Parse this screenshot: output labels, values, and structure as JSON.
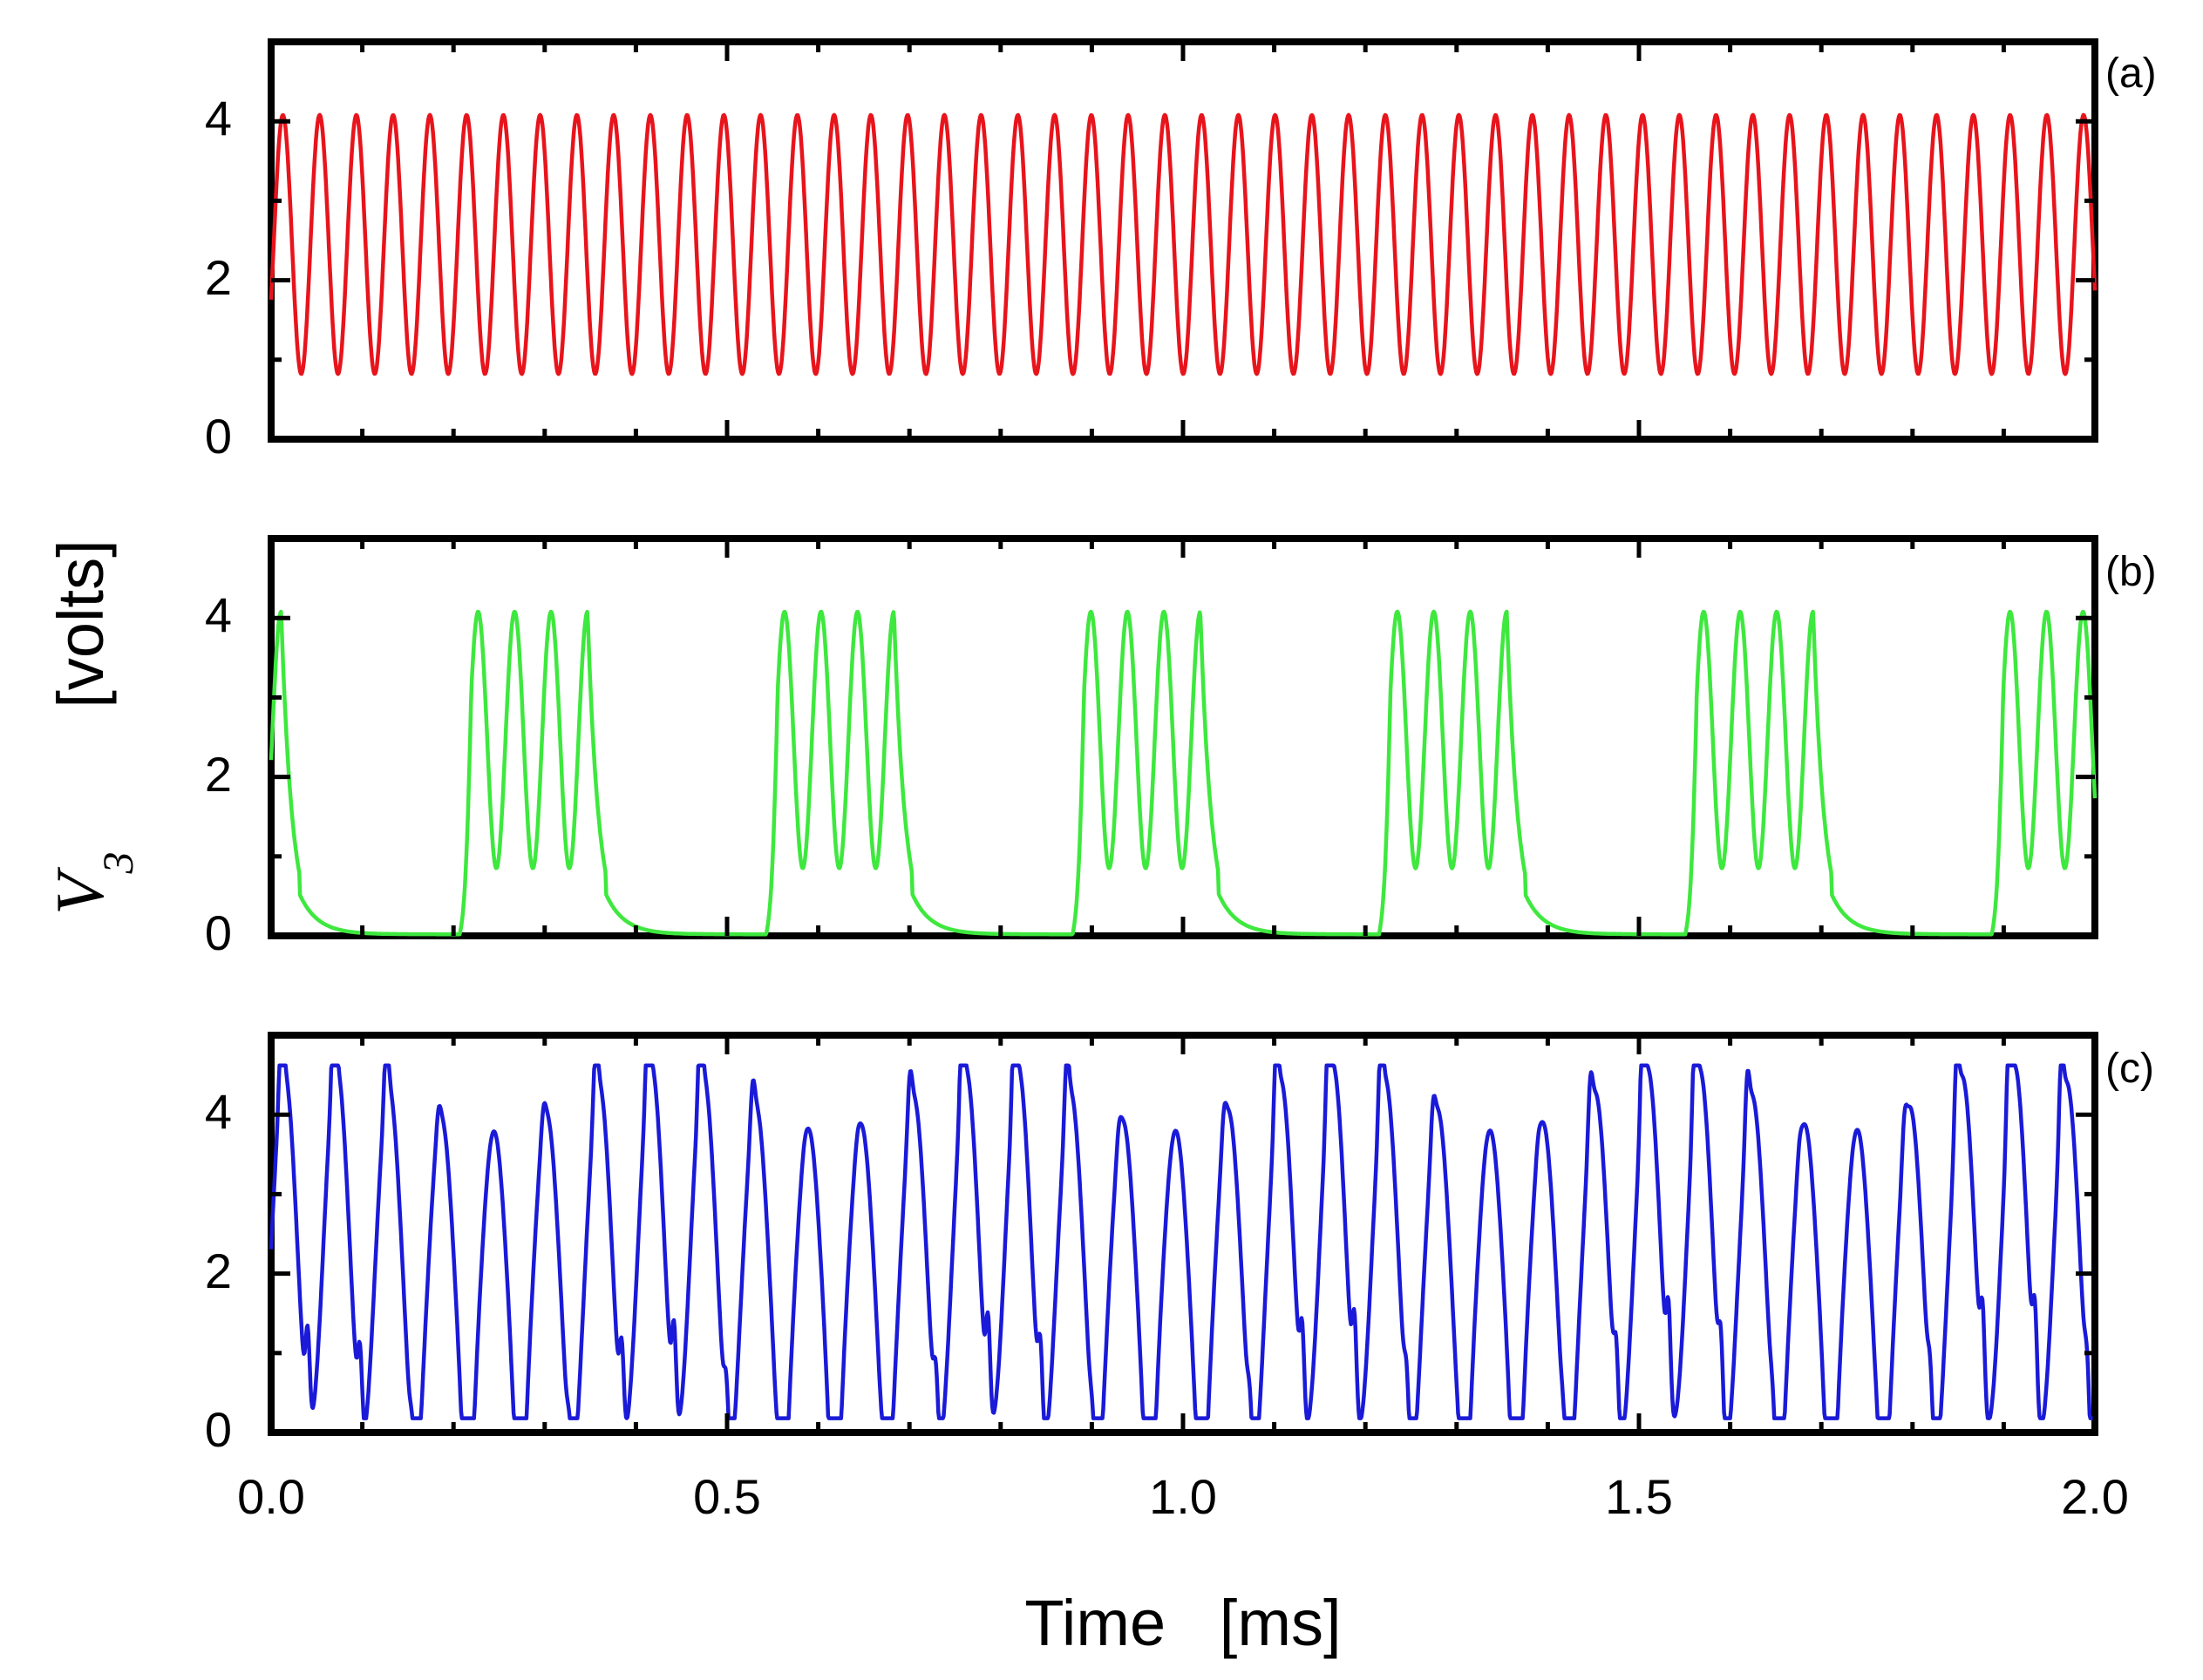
{
  "chart_data": {
    "type": "line",
    "xlabel": "Time   [ms]",
    "ylabel_var": "V",
    "ylabel_sub": "3",
    "ylabel_unit": "[volts]",
    "x_ticks": [
      "0.0",
      "0.5",
      "1.0",
      "1.5",
      "2.0"
    ],
    "y_ticks": [
      "0",
      "2",
      "4"
    ],
    "xlim": [
      0,
      2.0
    ],
    "ylim": [
      0,
      5
    ],
    "panels": [
      {
        "label": "(a)",
        "color": "#e8141c",
        "behavior": "periodic oscillation",
        "period_ms": 0.0403,
        "min_v": 0.82,
        "max_v": 4.08
      },
      {
        "label": "(b)",
        "color": "#3ee83e",
        "behavior": "bursting",
        "burst_period_ms": 0.336,
        "spikes_per_burst": 4,
        "spike_period_ms": 0.04,
        "spike_max_v": 4.08,
        "spike_trough_v": 0.85,
        "quiescent_v": 0.02
      },
      {
        "label": "(c)",
        "color": "#1a1ad8",
        "behavior": "chaotic oscillation",
        "min_v": 0.18,
        "max_v": 4.62
      }
    ]
  }
}
